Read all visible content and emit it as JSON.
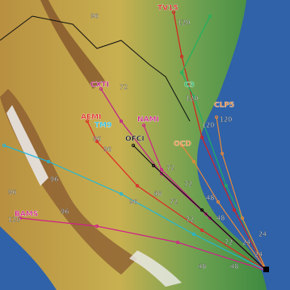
{
  "tracks": [
    {
      "name": "TV15",
      "color": "#d82020"
    },
    {
      "name": "C3",
      "color": "#20b060"
    },
    {
      "name": "CLP5",
      "color": "#e8883a"
    },
    {
      "name": "CXTI",
      "color": "#c0208a"
    },
    {
      "name": "AEMI",
      "color": "#e02828"
    },
    {
      "name": "TM9",
      "color": "#20b8d8"
    },
    {
      "name": "NAMI",
      "color": "#d0208a"
    },
    {
      "name": "OFCI",
      "color": "#101010"
    },
    {
      "name": "OCD",
      "color": "#e8883a"
    },
    {
      "name": "BAMS",
      "color": "#d0208a"
    }
  ],
  "hour_labels": [
    96,
    120,
    120,
    72,
    120,
    96,
    96,
    72,
    96,
    96,
    72,
    48,
    72,
    96,
    120,
    48,
    72,
    24,
    48,
    24,
    72,
    48,
    24,
    48,
    96,
    120
  ]
}
